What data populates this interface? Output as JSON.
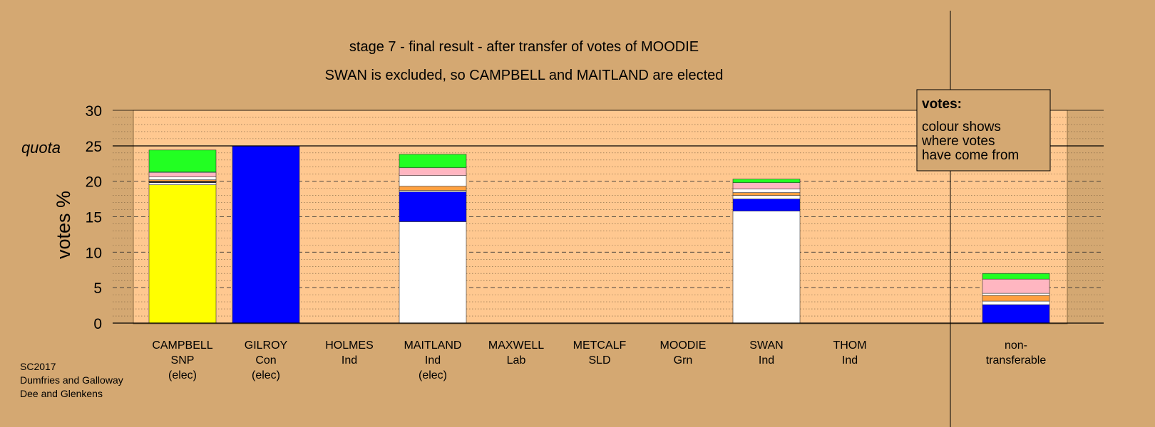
{
  "chart_data": {
    "type": "bar",
    "stacked": true,
    "title": "stage 7 - final result - after transfer of votes of MOODIE",
    "subtitle": "SWAN is excluded, so CAMPBELL and MAITLAND are elected",
    "ylabel": "votes %",
    "ylim": [
      0,
      30
    ],
    "yticks": [
      0,
      5,
      10,
      15,
      20,
      25,
      30
    ],
    "quota": 25,
    "quota_label": "quota",
    "grid": true,
    "legend": {
      "position": "top-right",
      "title": "votes:",
      "lines": [
        "colour shows",
        "where votes",
        "have come from"
      ]
    },
    "categories": [
      {
        "name": "CAMPBELL",
        "party": "SNP",
        "status": "(elec)"
      },
      {
        "name": "GILROY",
        "party": "Con",
        "status": "(elec)"
      },
      {
        "name": "HOLMES",
        "party": "Ind",
        "status": ""
      },
      {
        "name": "MAITLAND",
        "party": "Ind",
        "status": "(elec)"
      },
      {
        "name": "MAXWELL",
        "party": "Lab",
        "status": ""
      },
      {
        "name": "METCALF",
        "party": "SLD",
        "status": ""
      },
      {
        "name": "MOODIE",
        "party": "Grn",
        "status": ""
      },
      {
        "name": "SWAN",
        "party": "Ind",
        "status": ""
      },
      {
        "name": "THOM",
        "party": "Ind",
        "status": ""
      },
      {
        "name": "non-",
        "party": "transferable",
        "status": ""
      }
    ],
    "segments": [
      [
        {
          "color": "#ffff00",
          "value": 19.5
        },
        {
          "color": "#ffffff",
          "value": 0.3
        },
        {
          "color": "#222222",
          "value": 0.2
        },
        {
          "color": "#ffa040",
          "value": 0.2
        },
        {
          "color": "#ffffff",
          "value": 0.4
        },
        {
          "color": "#ffb6c1",
          "value": 0.6
        },
        {
          "color": "#ffffff",
          "value": 0.1
        },
        {
          "color": "#22ff22",
          "value": 3.1
        }
      ],
      [
        {
          "color": "#0000ff",
          "value": 25.0
        }
      ],
      [],
      [
        {
          "color": "#ffffff",
          "value": 14.3
        },
        {
          "color": "#0000ff",
          "value": 4.2
        },
        {
          "color": "#ffffff",
          "value": 0.2
        },
        {
          "color": "#ffa040",
          "value": 0.6
        },
        {
          "color": "#ffffff",
          "value": 1.5
        },
        {
          "color": "#ffb6c1",
          "value": 1.1
        },
        {
          "color": "#22ff22",
          "value": 1.9
        }
      ],
      [],
      [],
      [],
      [
        {
          "color": "#ffffff",
          "value": 15.8
        },
        {
          "color": "#0000ff",
          "value": 1.7
        },
        {
          "color": "#ffffff",
          "value": 0.5
        },
        {
          "color": "#ffa040",
          "value": 0.4
        },
        {
          "color": "#ffffff",
          "value": 0.5
        },
        {
          "color": "#ffb6c1",
          "value": 0.9
        },
        {
          "color": "#22ff22",
          "value": 0.5
        }
      ],
      [],
      [
        {
          "color": "#0000ff",
          "value": 2.6
        },
        {
          "color": "#ffffff",
          "value": 0.5
        },
        {
          "color": "#ffa040",
          "value": 0.8
        },
        {
          "color": "#ffffff",
          "value": 0.3
        },
        {
          "color": "#ffb6c1",
          "value": 2.0
        },
        {
          "color": "#22ff22",
          "value": 0.8
        }
      ]
    ]
  },
  "footer": {
    "lines": [
      "SC2017",
      "Dumfries and Galloway",
      "Dee and Glenkens"
    ]
  }
}
